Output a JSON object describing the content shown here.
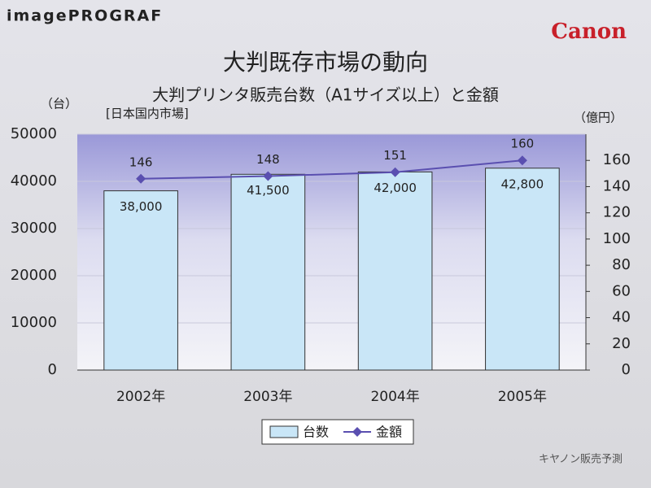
{
  "brand": "imagePROGRAF",
  "logo": "Canon",
  "chart_data": {
    "type": "bar_line",
    "title": "大判既存市場の動向",
    "subtitle": "大判プリンタ販売台数（A1サイズ以上）と金額",
    "note": "[日本国内市場]",
    "y_label": "（台）",
    "y2_label": "（億円）",
    "source": "キヤノン販売予測",
    "categories": [
      "2002年",
      "2003年",
      "2004年",
      "2005年"
    ],
    "series": [
      {
        "name": "台数",
        "type": "bar",
        "color": "#c9e6f7",
        "values": [
          38000,
          41500,
          42000,
          42800
        ],
        "value_labels": [
          "38,000",
          "41,500",
          "42,000",
          "42,800"
        ]
      },
      {
        "name": "金額",
        "type": "line",
        "axis": "y2",
        "color": "#5a4fb0",
        "values": [
          146,
          148,
          151,
          160
        ]
      }
    ],
    "ylim": [
      0,
      50000
    ],
    "yticks": [
      0,
      10000,
      20000,
      30000,
      40000,
      50000
    ],
    "y2lim": [
      0,
      180
    ],
    "y2ticks": [
      0,
      20,
      40,
      60,
      80,
      100,
      120,
      140,
      160
    ],
    "grid": true,
    "legend": "bottom"
  }
}
